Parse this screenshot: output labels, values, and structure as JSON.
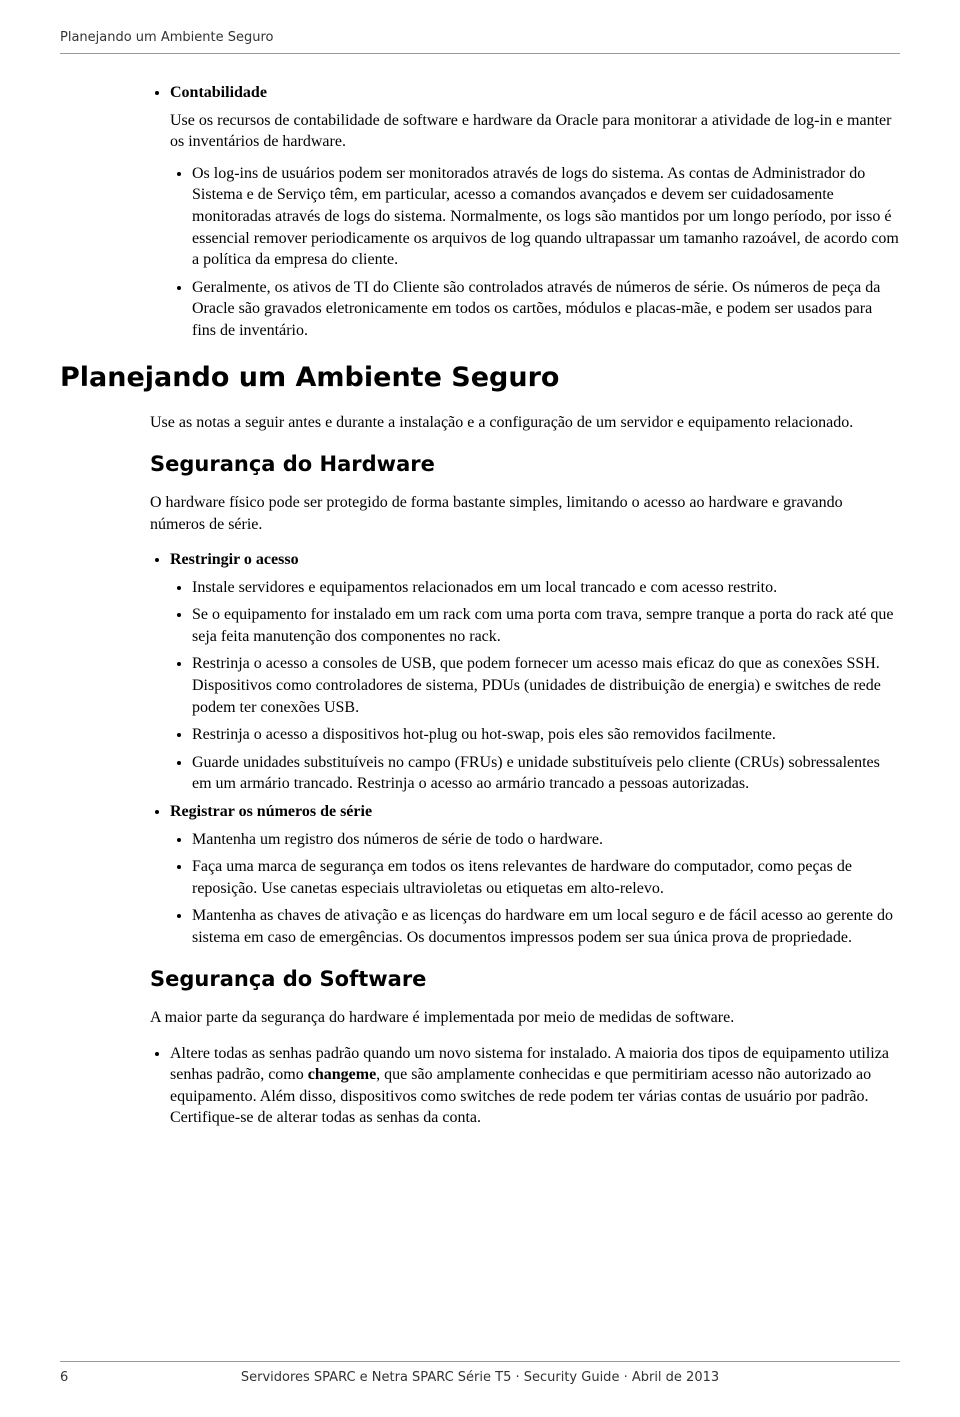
{
  "runningHead": "Planejando um Ambiente Seguro",
  "topList": {
    "contabilidade": {
      "term": "Contabilidade",
      "para": "Use os recursos de contabilidade de software e hardware da Oracle para monitorar a atividade de log-in e manter os inventários de hardware.",
      "bullet1": "Os log-ins de usuários podem ser monitorados através de logs do sistema. As contas de Administrador do Sistema e de Serviço têm, em particular, acesso a comandos avançados e devem ser cuidadosamente monitoradas através de logs do sistema. Normalmente, os logs são mantidos por um longo período, por isso é essencial remover periodicamente os arquivos de log quando ultrapassar um tamanho razoável, de acordo com a política da empresa do cliente.",
      "bullet2": "Geralmente, os ativos de TI do Cliente são controlados através de números de série. Os números de peça da Oracle são gravados eletronicamente em todos os cartões, módulos e placas-mãe, e podem ser usados para fins de inventário."
    }
  },
  "sectionTitle": "Planejando um Ambiente Seguro",
  "introPara": "Use as notas a seguir antes e durante a instalação e a configuração de um servidor e equipamento relacionado.",
  "hardware": {
    "title": "Segurança do Hardware",
    "para": "O hardware físico pode ser protegido de forma bastante simples, limitando o acesso ao hardware e gravando números de série.",
    "restrictTitle": "Restringir o acesso",
    "r1": "Instale servidores e equipamentos relacionados em um local trancado e com acesso restrito.",
    "r2": "Se o equipamento for instalado em um rack com uma porta com trava, sempre tranque a porta do rack até que seja feita manutenção dos componentes no rack.",
    "r3": "Restrinja o acesso a consoles de USB, que podem fornecer um acesso mais eficaz do que as conexões SSH. Dispositivos como controladores de sistema, PDUs (unidades de distribuição de energia) e switches de rede podem ter conexões USB.",
    "r4": "Restrinja o acesso a dispositivos hot-plug ou hot-swap, pois eles são removidos facilmente.",
    "r5": "Guarde unidades substituíveis no campo (FRUs) e unidade substituíveis pelo cliente (CRUs) sobressalentes em um armário trancado. Restrinja o acesso ao armário trancado a pessoas autorizadas.",
    "serialTitle": "Registrar os números de série",
    "s1": "Mantenha um registro dos números de série de todo o hardware.",
    "s2": "Faça uma marca de segurança em todos os itens relevantes de hardware do computador, como peças de reposição. Use canetas especiais ultravioletas ou etiquetas em alto-relevo.",
    "s3": "Mantenha as chaves de ativação e as licenças do hardware em um local seguro e de fácil acesso ao gerente do sistema em caso de emergências. Os documentos impressos podem ser sua única prova de propriedade."
  },
  "software": {
    "title": "Segurança do Software",
    "para": "A maior parte da segurança do hardware é implementada por meio de medidas de software.",
    "b1_pre": "Altere todas as senhas padrão quando um novo sistema for instalado. A maioria dos tipos de equipamento utiliza senhas padrão, como ",
    "b1_bold": "changeme",
    "b1_post": ", que são amplamente conhecidas e que permitiriam acesso não autorizado ao equipamento. Além disso, dispositivos como switches de rede podem ter várias contas de usuário por padrão. Certifique-se de alterar todas as senhas da conta."
  },
  "footer": {
    "pageNumber": "6",
    "center": "Servidores SPARC e Netra SPARC Série T5 · Security Guide · Abril de 2013"
  }
}
